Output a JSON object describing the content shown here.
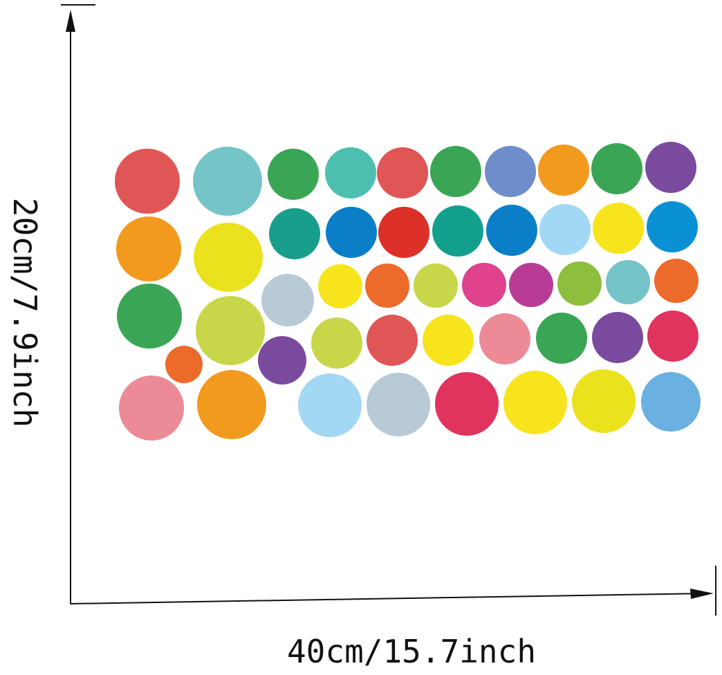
{
  "dimensions": {
    "height_label": "20cm/7.9inch",
    "width_label": "40cm/15.7inch"
  },
  "line_color": "#111111",
  "dot_colors": [
    "#e05555",
    "#f29a1e",
    "#3aa655",
    "#ec6a2a",
    "#ec8a98",
    "#74c4c8",
    "#ebe21e",
    "#c8d64a",
    "#7a4a9e",
    "#f29a1e",
    "#3aa655",
    "#4dbfb0",
    "#e05555",
    "#3aa655",
    "#6f8dca",
    "#f29a1e",
    "#3aa655",
    "#7a4a9e",
    "#1a9e8c",
    "#0a7fc8",
    "#dc3028",
    "#12a08c",
    "#0a7fc8",
    "#a3d8f4",
    "#f8e41c",
    "#0a90d4",
    "#b8cad6",
    "#f8e41c",
    "#ec6a2a",
    "#c8d64a",
    "#e0428e",
    "#b83c96",
    "#8dbe3e",
    "#74c4c8",
    "#ec6a2a",
    "#c8d64a",
    "#e05555",
    "#f8e41c",
    "#ec8a98",
    "#3aa655",
    "#7a4a9e",
    "#e0335e",
    "#a3d8f4",
    "#b8cad6",
    "#e0335e",
    "#f8e41c",
    "#ebe21e",
    "#6ab0e0"
  ]
}
